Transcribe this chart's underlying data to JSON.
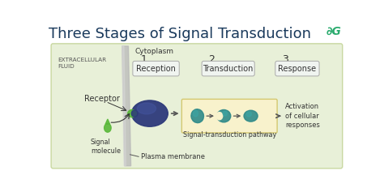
{
  "title": "Three Stages of Signal Transduction",
  "title_color": "#1a3a5c",
  "title_fontsize": 13,
  "bg_color": "#ffffff",
  "panel_bg": "#e8f0d8",
  "panel_border": "#c8d8a0",
  "logo_color": "#2aab6e",
  "stages": [
    "Reception",
    "Transduction",
    "Response"
  ],
  "stage_numbers": [
    "1.",
    "2.",
    "3."
  ],
  "stage_box_color": "#f0f4f0",
  "stage_box_border": "#aabbaa",
  "labels": {
    "extracellular": "EXTRACELLULAR\nFLUID",
    "cytoplasm": "Cytoplasm",
    "receptor": "Receptor",
    "signal_molecule": "Signal\nmolecule",
    "plasma_membrane": "Plasma membrane",
    "signal_pathway": "Signal-transduction pathway",
    "activation": "Activation\nof cellular\nresponses"
  },
  "cell_color": "#2d3a7a",
  "cell_color2": "#4455a0",
  "signal_molecule_color": "#5ab83a",
  "teal_molecule_color": "#2a8888",
  "teal_molecule_light": "#3aaaaa",
  "pathway_box_color": "#f8f2cc",
  "pathway_box_border": "#d4c870",
  "membrane_color": "#b8b8b8",
  "arrow_color": "#555555",
  "text_dark": "#333333",
  "text_mid": "#555555"
}
